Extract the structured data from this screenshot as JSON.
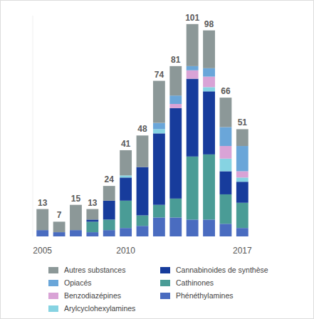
{
  "chart_data": {
    "type": "bar",
    "stacked": true,
    "tick_labels": "x",
    "legend": "bottom",
    "data_labels": false,
    "categories": [
      "2005",
      null,
      null,
      null,
      null,
      "2010",
      null,
      null,
      null,
      null,
      null,
      null,
      "2017"
    ],
    "ylim": [
      0,
      105
    ],
    "totals": [
      13,
      7,
      15,
      13,
      24,
      41,
      48,
      74,
      81,
      101,
      98,
      66,
      51
    ],
    "series": [
      {
        "name": "Phénéthylamines",
        "color": "#4a6cc0",
        "values": [
          3,
          2,
          3,
          2,
          3,
          4,
          5,
          9,
          9,
          8,
          8,
          6,
          4
        ]
      },
      {
        "name": "Cathinones",
        "color": "#4a9c96",
        "values": [
          0,
          0,
          0,
          5,
          5,
          13,
          5,
          6,
          9,
          30,
          31,
          14,
          12
        ]
      },
      {
        "name": "Cannabinoides de synthèse",
        "color": "#173c9c",
        "values": [
          0,
          0,
          0,
          1,
          9,
          11,
          23,
          34,
          43,
          37,
          30,
          11,
          10
        ]
      },
      {
        "name": "Arylcyclohexylamines",
        "color": "#86d3e2",
        "values": [
          0,
          0,
          0,
          0,
          0,
          1,
          0,
          2,
          0,
          0,
          2,
          6,
          2
        ]
      },
      {
        "name": "Benzodiazépines",
        "color": "#d9a3d6",
        "values": [
          0,
          0,
          0,
          0,
          0,
          0,
          0,
          0,
          2,
          4,
          5,
          6,
          3
        ]
      },
      {
        "name": "Opiacés",
        "color": "#6aa6d9",
        "values": [
          0,
          0,
          0,
          0,
          0,
          0,
          0,
          3,
          4,
          2,
          4,
          9,
          12
        ]
      },
      {
        "name": "Autres substances",
        "color": "#8c9898",
        "values": [
          10,
          5,
          12,
          5,
          7,
          12,
          15,
          20,
          14,
          20,
          18,
          14,
          8
        ]
      }
    ]
  }
}
